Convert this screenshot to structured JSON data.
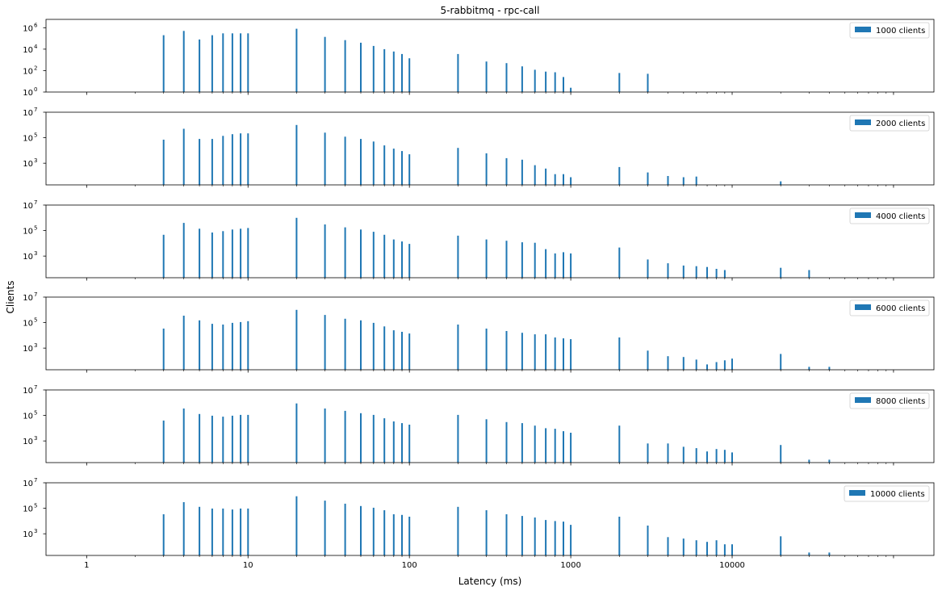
{
  "chart_data": {
    "type": "bar",
    "title": "5-rabbitmq - rpc-call",
    "xlabel": "Latency (ms)",
    "ylabel": "Clients",
    "xscale": "log",
    "yscale": "log",
    "xlim": [
      0.56,
      178000
    ],
    "x_tick_labels": [
      "1",
      "10",
      "100",
      "1000",
      "10000"
    ],
    "x_ticks": [
      1,
      10,
      100,
      1000,
      10000
    ],
    "legend_placement": "top-right",
    "bar_color": "#1f77b4",
    "x": [
      3,
      4,
      5,
      6,
      7,
      8,
      9,
      10,
      20,
      30,
      40,
      50,
      60,
      70,
      80,
      90,
      100,
      200,
      300,
      400,
      500,
      600,
      700,
      800,
      900,
      1000,
      2000,
      3000,
      4000,
      5000,
      6000,
      7000,
      8000,
      9000,
      10000,
      20000,
      30000,
      40000
    ],
    "series": [
      {
        "name": "1000 clients",
        "ylim": [
          1,
          6000000
        ],
        "yticks": [
          0,
          2,
          4,
          6
        ],
        "values": [
          200000,
          500000,
          80000,
          200000,
          300000,
          300000,
          300000,
          300000,
          800000,
          140000,
          70000,
          40000,
          20000,
          10000,
          6000,
          3500,
          1400,
          3500,
          700,
          500,
          250,
          120,
          80,
          70,
          25,
          2.5,
          60,
          50,
          null,
          null,
          null,
          null,
          null,
          null,
          null,
          null,
          null,
          null
        ]
      },
      {
        "name": "2000 clients",
        "ylim": [
          20,
          10000000
        ],
        "yticks": [
          3,
          5,
          7
        ],
        "values": [
          70000,
          500000,
          80000,
          80000,
          140000,
          190000,
          220000,
          220000,
          1000000,
          250000,
          120000,
          80000,
          50000,
          25000,
          14000,
          9000,
          5000,
          16000,
          6000,
          2500,
          1900,
          700,
          380,
          140,
          140,
          80,
          500,
          190,
          100,
          80,
          90,
          null,
          null,
          null,
          null,
          38,
          null,
          null
        ]
      },
      {
        "name": "4000 clients",
        "ylim": [
          20,
          10000000
        ],
        "yticks": [
          3,
          5,
          7
        ],
        "values": [
          47000,
          400000,
          140000,
          70000,
          90000,
          120000,
          140000,
          160000,
          1000000,
          300000,
          180000,
          120000,
          80000,
          47000,
          20000,
          14000,
          9000,
          40000,
          20000,
          16000,
          12000,
          11000,
          3500,
          1600,
          2000,
          1600,
          4700,
          540,
          270,
          180,
          160,
          140,
          100,
          80,
          null,
          120,
          80,
          null
        ]
      },
      {
        "name": "6000 clients",
        "ylim": [
          20,
          10000000
        ],
        "yticks": [
          3,
          5,
          7
        ],
        "values": [
          34000,
          350000,
          150000,
          80000,
          70000,
          95000,
          110000,
          130000,
          1000000,
          400000,
          200000,
          150000,
          95000,
          50000,
          25000,
          19000,
          14000,
          70000,
          34000,
          22000,
          16000,
          12000,
          12000,
          6800,
          5800,
          5000,
          6800,
          630,
          230,
          200,
          125,
          52,
          80,
          110,
          150,
          350,
          34,
          34
        ]
      },
      {
        "name": "8000 clients",
        "ylim": [
          20,
          10000000
        ],
        "yticks": [
          3,
          5,
          7
        ],
        "values": [
          40000,
          350000,
          130000,
          95000,
          80000,
          95000,
          110000,
          110000,
          870000,
          350000,
          230000,
          150000,
          110000,
          60000,
          34000,
          25000,
          19000,
          110000,
          50000,
          30000,
          25000,
          16000,
          10000,
          9000,
          5800,
          4400,
          16000,
          630,
          630,
          350,
          270,
          150,
          230,
          200,
          125,
          480,
          34,
          34
        ]
      },
      {
        "name": "10000 clients",
        "ylim": [
          20,
          10000000
        ],
        "yticks": [
          3,
          5,
          7
        ],
        "values": [
          34000,
          300000,
          130000,
          95000,
          95000,
          80000,
          95000,
          95000,
          870000,
          400000,
          230000,
          150000,
          110000,
          70000,
          34000,
          30000,
          22000,
          130000,
          70000,
          34000,
          25000,
          19000,
          12000,
          10000,
          9000,
          5000,
          22000,
          4400,
          550,
          420,
          310,
          230,
          310,
          150,
          150,
          630,
          34,
          34
        ]
      }
    ]
  }
}
